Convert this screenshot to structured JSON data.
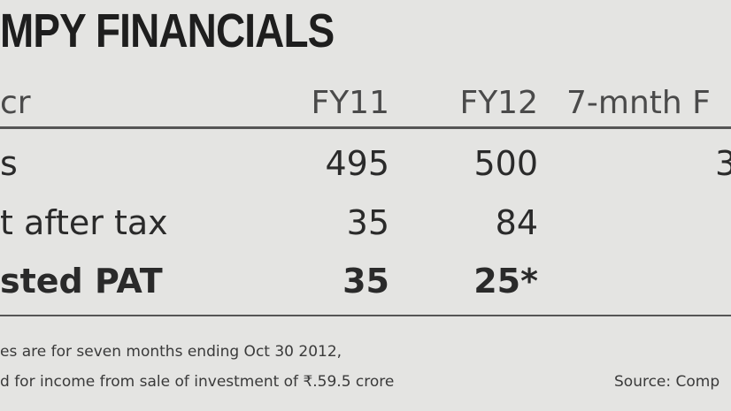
{
  "header": {
    "title": "MPY FINANCIALS"
  },
  "table": {
    "columns": [
      "cr",
      "FY11",
      "FY12",
      "7-mnth F"
    ],
    "rows": [
      {
        "label": "s",
        "fy11": 495,
        "fy12": 500,
        "h7": "3"
      },
      {
        "label": "t after tax",
        "fy11": 35,
        "fy12": 84
      },
      {
        "label": "sted PAT",
        "fy11": 35,
        "fy12": "25*"
      }
    ]
  },
  "footnotes": [
    "es are for seven months ending Oct 30 2012,",
    "d for income from sale of investment of ₹.59.5 crore"
  ],
  "source": "Source: Comp"
}
